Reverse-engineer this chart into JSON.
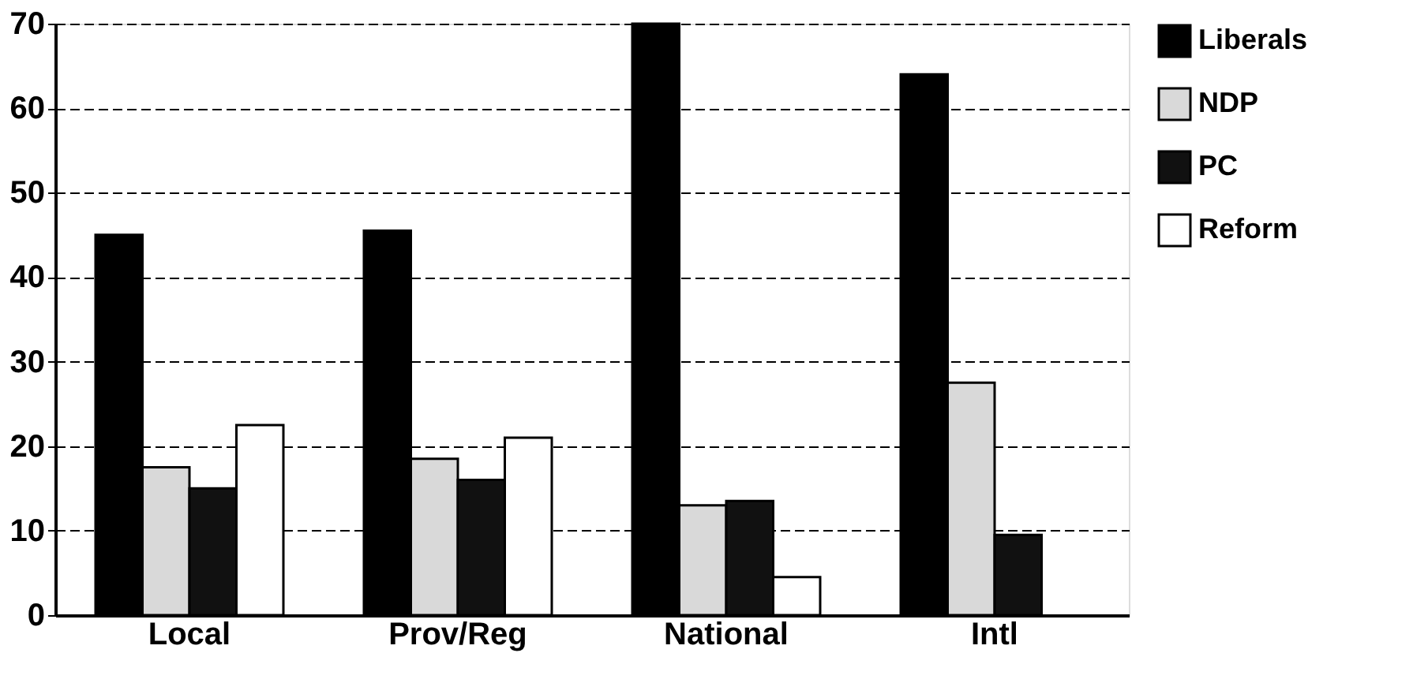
{
  "chart_data": {
    "type": "bar",
    "categories": [
      "Local",
      "Prov/Reg",
      "National",
      "Intl"
    ],
    "series": [
      {
        "name": "Liberals",
        "color": "#000000",
        "values": [
          45,
          45.5,
          70,
          64
        ]
      },
      {
        "name": "NDP",
        "color": "#d9d9d9",
        "values": [
          17.5,
          18.5,
          13,
          27.5
        ]
      },
      {
        "name": "PC",
        "color": "#111111",
        "values": [
          15,
          16,
          13.5,
          9.5
        ]
      },
      {
        "name": "Reform",
        "color": "#ffffff",
        "values": [
          22.5,
          21,
          4.5,
          null
        ]
      }
    ],
    "ylim": [
      0,
      70
    ],
    "yticks": [
      0,
      10,
      20,
      30,
      40,
      50,
      60,
      70
    ],
    "grid": "y",
    "legend": "right"
  }
}
